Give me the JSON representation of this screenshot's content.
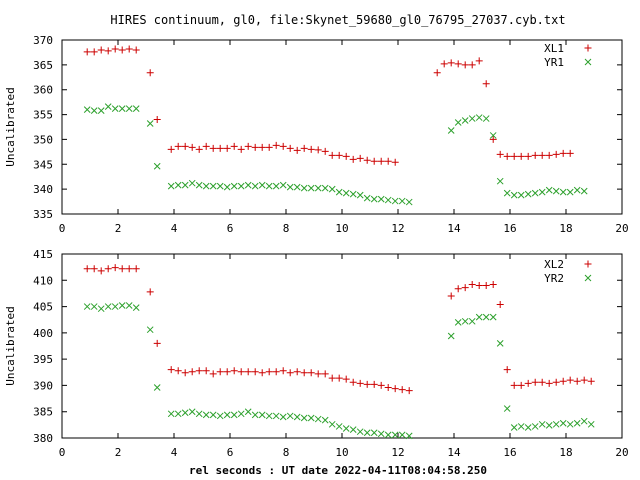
{
  "chart_data": [
    {
      "type": "scatter",
      "title": "HIRES continuum, gl0, file:Skynet_59680_gl0_76795_27037.cyb.txt",
      "xlabel": "",
      "ylabel": "Uncalibrated",
      "xlim": [
        0,
        20
      ],
      "ylim": [
        335,
        370
      ],
      "xticks": [
        0,
        2,
        4,
        6,
        8,
        10,
        12,
        14,
        16,
        18,
        20
      ],
      "yticks": [
        335,
        340,
        345,
        350,
        355,
        360,
        365,
        370
      ],
      "legend_position": "top-right",
      "grid": false,
      "x": [
        0.9,
        1.15,
        1.4,
        1.65,
        1.9,
        2.15,
        2.4,
        2.65,
        2.9,
        3.15,
        3.4,
        3.9,
        4.15,
        4.4,
        4.65,
        4.9,
        5.15,
        5.4,
        5.65,
        5.9,
        6.15,
        6.4,
        6.65,
        6.9,
        7.15,
        7.4,
        7.65,
        7.9,
        8.15,
        8.4,
        8.65,
        8.9,
        9.15,
        9.4,
        9.65,
        9.9,
        10.15,
        10.4,
        10.65,
        10.9,
        11.15,
        11.4,
        11.65,
        11.9,
        12.15,
        12.4,
        12.65,
        12.9,
        13.15,
        13.4,
        13.65,
        13.9,
        14.15,
        14.4,
        14.65,
        14.9,
        15.15,
        15.4,
        15.65,
        15.9,
        16.15,
        16.4,
        16.65,
        16.9,
        17.15,
        17.4,
        17.65,
        17.9,
        18.15,
        18.4,
        18.65,
        18.9,
        19.15,
        19.4
      ],
      "series": [
        {
          "name": "XL1",
          "marker": "plus",
          "color": "#cc0000",
          "values": [
            367.6,
            367.6,
            368.0,
            367.8,
            368.2,
            368.0,
            368.2,
            368.0,
            null,
            363.4,
            354.0,
            348.0,
            348.6,
            348.6,
            348.4,
            348.0,
            348.6,
            348.2,
            348.2,
            348.2,
            348.6,
            348.0,
            348.6,
            348.4,
            348.4,
            348.4,
            348.8,
            348.6,
            348.2,
            347.8,
            348.2,
            348.0,
            347.9,
            347.6,
            346.8,
            346.8,
            346.6,
            346.0,
            346.2,
            345.8,
            345.6,
            345.6,
            345.6,
            345.4,
            null,
            null,
            null,
            null,
            null,
            363.4,
            365.2,
            365.4,
            365.2,
            365.0,
            365.0,
            365.8,
            361.2,
            350.0,
            347.0,
            346.6,
            346.6,
            346.6,
            346.6,
            346.8,
            346.8,
            346.8,
            347.0,
            347.2,
            347.2,
            null,
            null,
            null,
            null,
            null
          ]
        },
        {
          "name": "YR1",
          "marker": "x",
          "color": "#2ca02c",
          "values": [
            356.0,
            355.8,
            355.8,
            356.6,
            356.2,
            356.2,
            356.2,
            356.2,
            null,
            353.2,
            344.6,
            340.6,
            340.8,
            340.8,
            341.2,
            340.8,
            340.6,
            340.6,
            340.6,
            340.4,
            340.6,
            340.6,
            340.8,
            340.6,
            340.8,
            340.6,
            340.6,
            340.8,
            340.4,
            340.4,
            340.2,
            340.2,
            340.2,
            340.2,
            340.0,
            339.4,
            339.2,
            339.0,
            338.8,
            338.2,
            338.0,
            338.0,
            337.8,
            337.6,
            337.6,
            337.4,
            null,
            null,
            null,
            null,
            null,
            351.8,
            353.4,
            353.8,
            354.2,
            354.4,
            354.2,
            350.8,
            341.6,
            339.2,
            338.8,
            338.8,
            339.0,
            339.2,
            339.4,
            339.8,
            339.6,
            339.4,
            339.4,
            339.8,
            339.6,
            null,
            null,
            null
          ]
        }
      ]
    },
    {
      "type": "scatter",
      "title": "",
      "xlabel": "rel seconds : UT date 2022-04-11T08:04:58.250",
      "ylabel": "Uncalibrated",
      "xlim": [
        0,
        20
      ],
      "ylim": [
        380,
        415
      ],
      "xticks": [
        0,
        2,
        4,
        6,
        8,
        10,
        12,
        14,
        16,
        18,
        20
      ],
      "yticks": [
        380,
        385,
        390,
        395,
        400,
        405,
        410,
        415
      ],
      "legend_position": "top-right",
      "grid": false,
      "x": [
        0.9,
        1.15,
        1.4,
        1.65,
        1.9,
        2.15,
        2.4,
        2.65,
        2.9,
        3.15,
        3.4,
        3.9,
        4.15,
        4.4,
        4.65,
        4.9,
        5.15,
        5.4,
        5.65,
        5.9,
        6.15,
        6.4,
        6.65,
        6.9,
        7.15,
        7.4,
        7.65,
        7.9,
        8.15,
        8.4,
        8.65,
        8.9,
        9.15,
        9.4,
        9.65,
        9.9,
        10.15,
        10.4,
        10.65,
        10.9,
        11.15,
        11.4,
        11.65,
        11.9,
        12.15,
        12.4,
        12.65,
        12.9,
        13.15,
        13.4,
        13.65,
        13.9,
        14.15,
        14.4,
        14.65,
        14.9,
        15.15,
        15.4,
        15.65,
        15.9,
        16.15,
        16.4,
        16.65,
        16.9,
        17.15,
        17.4,
        17.65,
        17.9,
        18.15,
        18.4,
        18.65,
        18.9,
        19.15,
        19.4
      ],
      "series": [
        {
          "name": "XL2",
          "marker": "plus",
          "color": "#cc0000",
          "values": [
            412.2,
            412.2,
            411.8,
            412.2,
            412.4,
            412.2,
            412.2,
            412.2,
            null,
            407.8,
            398.0,
            393.0,
            392.8,
            392.4,
            392.6,
            392.8,
            392.8,
            392.2,
            392.6,
            392.6,
            392.8,
            392.6,
            392.6,
            392.6,
            392.4,
            392.6,
            392.6,
            392.8,
            392.4,
            392.6,
            392.4,
            392.4,
            392.2,
            392.2,
            391.4,
            391.4,
            391.2,
            390.6,
            390.4,
            390.2,
            390.2,
            390.0,
            389.6,
            389.4,
            389.2,
            389.0,
            null,
            null,
            null,
            null,
            null,
            407.0,
            408.4,
            408.6,
            409.2,
            409.0,
            409.0,
            409.2,
            405.4,
            393.0,
            390.0,
            390.0,
            390.4,
            390.6,
            390.6,
            390.4,
            390.6,
            390.8,
            391.0,
            390.8,
            391.0,
            390.8,
            null,
            null
          ]
        },
        {
          "name": "YR2",
          "marker": "x",
          "color": "#2ca02c",
          "values": [
            405.0,
            405.0,
            404.6,
            405.0,
            405.0,
            405.2,
            405.2,
            404.8,
            null,
            400.6,
            389.6,
            384.6,
            384.6,
            384.8,
            385.0,
            384.6,
            384.4,
            384.4,
            384.2,
            384.4,
            384.4,
            384.6,
            385.0,
            384.4,
            384.4,
            384.2,
            384.2,
            384.0,
            384.2,
            384.0,
            383.8,
            383.8,
            383.6,
            383.4,
            382.6,
            382.2,
            381.8,
            381.6,
            381.2,
            381.0,
            381.0,
            380.8,
            380.6,
            380.6,
            380.6,
            380.4,
            null,
            null,
            null,
            null,
            null,
            399.4,
            402.0,
            402.2,
            402.2,
            403.0,
            403.0,
            403.0,
            398.0,
            385.6,
            382.0,
            382.2,
            382.0,
            382.2,
            382.6,
            382.4,
            382.6,
            382.8,
            382.6,
            382.8,
            383.2,
            382.6,
            null,
            null
          ]
        }
      ]
    }
  ]
}
